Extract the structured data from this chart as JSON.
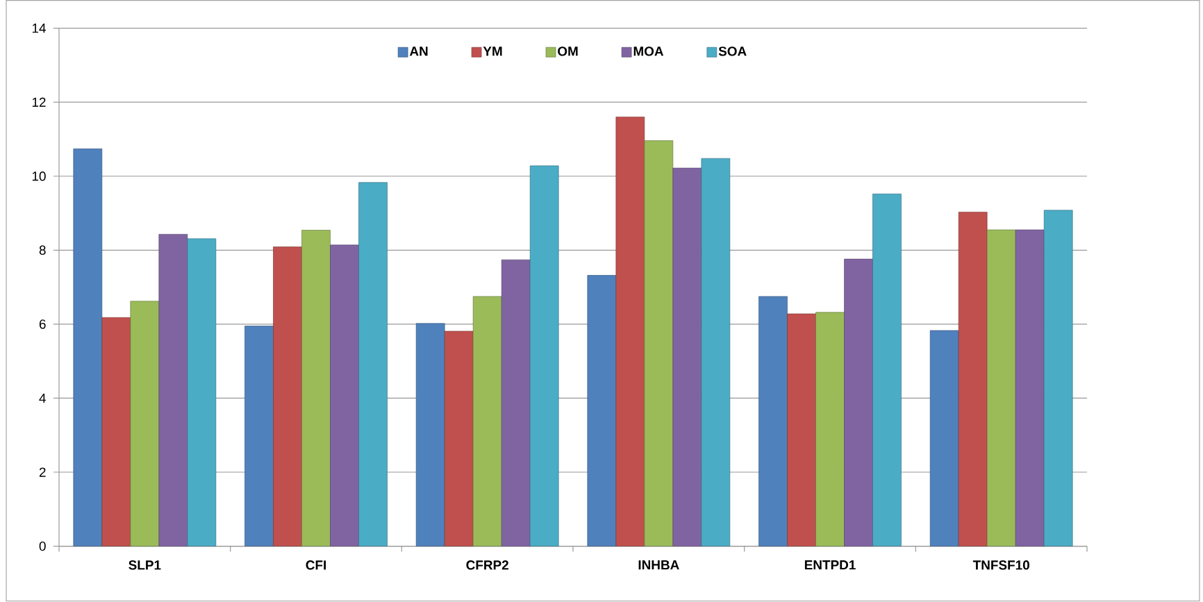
{
  "chart_data": {
    "type": "bar",
    "categories": [
      "SLP1",
      "CFI",
      "CFRP2",
      "INHBA",
      "ENTPD1",
      "TNFSF10"
    ],
    "series": [
      {
        "name": "AN",
        "color": "#4f81bd",
        "values": [
          10.74,
          5.95,
          6.02,
          7.32,
          6.75,
          5.83
        ]
      },
      {
        "name": "YM",
        "color": "#c0504d",
        "values": [
          6.18,
          8.09,
          5.81,
          11.6,
          6.28,
          9.03
        ]
      },
      {
        "name": "OM",
        "color": "#9bbb59",
        "values": [
          6.62,
          8.54,
          6.75,
          10.96,
          6.32,
          8.55
        ]
      },
      {
        "name": "MOA",
        "color": "#8064a2",
        "values": [
          8.43,
          8.14,
          7.74,
          10.22,
          7.76,
          8.55
        ]
      },
      {
        "name": "SOA",
        "color": "#4bacc6",
        "values": [
          8.31,
          9.83,
          10.28,
          10.48,
          9.52,
          9.08
        ]
      }
    ],
    "ylim": [
      0,
      14
    ],
    "yticks": [
      0,
      2,
      4,
      6,
      8,
      10,
      12,
      14
    ],
    "grid": "y",
    "legend": "top"
  }
}
